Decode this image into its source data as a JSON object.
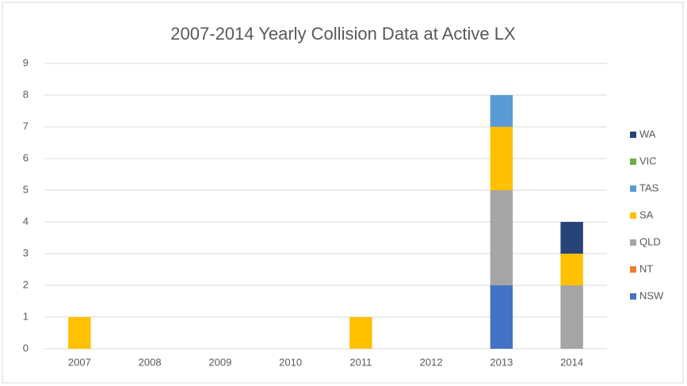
{
  "chart_data": {
    "type": "stacked_bar",
    "title": "2007-2014 Yearly Collision Data at Active LX",
    "categories": [
      "2007",
      "2008",
      "2009",
      "2010",
      "2011",
      "2012",
      "2013",
      "2014"
    ],
    "series": [
      {
        "name": "NSW",
        "color": "#4472c4",
        "values": [
          0,
          0,
          0,
          0,
          0,
          0,
          2,
          0
        ]
      },
      {
        "name": "NT",
        "color": "#ed7d31",
        "values": [
          0,
          0,
          0,
          0,
          0,
          0,
          0,
          0
        ]
      },
      {
        "name": "QLD",
        "color": "#a5a5a5",
        "values": [
          0,
          0,
          0,
          0,
          0,
          0,
          3,
          2
        ]
      },
      {
        "name": "SA",
        "color": "#ffc000",
        "values": [
          1,
          0,
          0,
          0,
          1,
          0,
          2,
          1
        ]
      },
      {
        "name": "TAS",
        "color": "#5b9bd5",
        "values": [
          0,
          0,
          0,
          0,
          0,
          0,
          1,
          0
        ]
      },
      {
        "name": "VIC",
        "color": "#70ad47",
        "values": [
          0,
          0,
          0,
          0,
          0,
          0,
          0,
          0
        ]
      },
      {
        "name": "WA",
        "color": "#264478",
        "values": [
          0,
          0,
          0,
          0,
          0,
          0,
          0,
          1
        ]
      }
    ],
    "ylim": [
      0,
      9
    ],
    "yticks": [
      0,
      1,
      2,
      3,
      4,
      5,
      6,
      7,
      8,
      9
    ],
    "grid": true,
    "legend": "right"
  }
}
